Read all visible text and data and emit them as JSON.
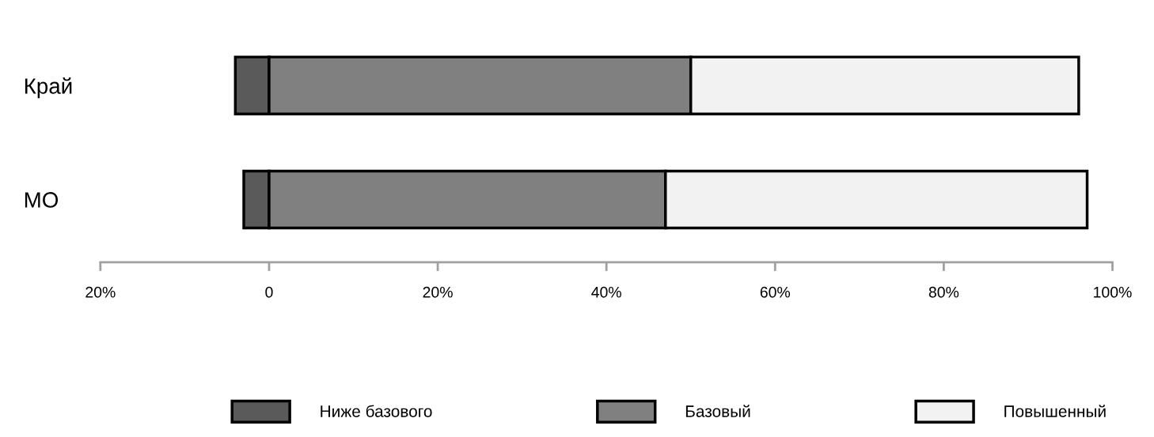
{
  "chart_data": {
    "type": "bar",
    "orientation": "horizontal",
    "stacked": true,
    "categories": [
      "Край",
      "МО"
    ],
    "series": [
      {
        "name": "Ниже базового",
        "color": "#5a5a5a",
        "values": [
          -4,
          -3
        ]
      },
      {
        "name": "Базовый",
        "color": "#808080",
        "values": [
          50,
          47
        ]
      },
      {
        "name": "Повышенный",
        "color": "#f2f2f2",
        "values": [
          46,
          50
        ]
      }
    ],
    "xlim": [
      -20,
      100
    ],
    "xticks": [
      {
        "value": -20,
        "label": "20%"
      },
      {
        "value": 0,
        "label": "0"
      },
      {
        "value": 20,
        "label": "20%"
      },
      {
        "value": 40,
        "label": "40%"
      },
      {
        "value": 60,
        "label": "60%"
      },
      {
        "value": 80,
        "label": "80%"
      },
      {
        "value": 100,
        "label": "100%"
      }
    ],
    "grid": false,
    "legend": "bottom"
  }
}
